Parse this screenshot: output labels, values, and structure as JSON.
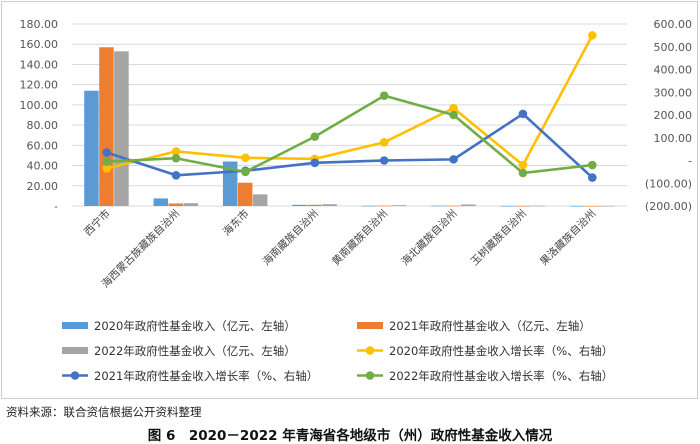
{
  "chart_data": {
    "type": "bar",
    "categories": [
      "西宁市",
      "海西蒙古族藏族自治州",
      "海东市",
      "海南藏族自治州",
      "黄南藏族自治州",
      "海北藏族自治州",
      "玉树藏族自治州",
      "果洛藏族自治州"
    ],
    "left_axis": {
      "ylim": [
        0,
        180
      ],
      "ticks": [
        "-",
        "20.00",
        "40.00",
        "60.00",
        "80.00",
        "100.00",
        "120.00",
        "140.00",
        "160.00",
        "180.00"
      ]
    },
    "right_axis": {
      "ylim": [
        -200,
        600
      ],
      "ticks": [
        "(200.00)",
        "(100.00)",
        "-",
        "100.00",
        "200.00",
        "300.00",
        "400.00",
        "500.00",
        "600.00"
      ]
    },
    "series": [
      {
        "name": "2020年政府性基金收入（亿元、左轴）",
        "kind": "bar",
        "axis": "left",
        "color": "#5b9bd5",
        "values": [
          114,
          7.5,
          44,
          1.2,
          0.2,
          0.3,
          0.1,
          0.05
        ]
      },
      {
        "name": "2021年政府性基金收入（亿元、左轴）",
        "kind": "bar",
        "axis": "left",
        "color": "#ed7d31",
        "values": [
          157,
          2.5,
          23,
          1.2,
          0.3,
          0.3,
          0.1,
          0.05
        ]
      },
      {
        "name": "2022年政府性基金收入（亿元、左轴）",
        "kind": "bar",
        "axis": "left",
        "color": "#a5a5a5",
        "values": [
          153,
          2.8,
          11.5,
          1.8,
          0.8,
          1.5,
          0.3,
          0.1
        ]
      },
      {
        "name": "2020年政府性基金收入增长率（%、右轴）",
        "kind": "line",
        "axis": "right",
        "color": "#ffc000",
        "values": [
          -35,
          40,
          12,
          7,
          80,
          230,
          -20,
          550
        ]
      },
      {
        "name": "2021年政府性基金收入增长率（%、右轴）",
        "kind": "line",
        "axis": "right",
        "color": "#4472c4",
        "values": [
          35,
          -65,
          -45,
          -10,
          0,
          5,
          205,
          -75
        ]
      },
      {
        "name": "2022年政府性基金收入增长率（%、右轴）",
        "kind": "line",
        "axis": "right",
        "color": "#70ad47",
        "values": [
          -5,
          10,
          -50,
          105,
          285,
          200,
          -55,
          -20
        ]
      }
    ],
    "grid": true,
    "legend_position": "bottom"
  },
  "source_note": "资料来源：联合资信根据公开资料整理",
  "figure_caption": "图 6　2020－2022 年青海省各地级市（州）政府性基金收入情况"
}
